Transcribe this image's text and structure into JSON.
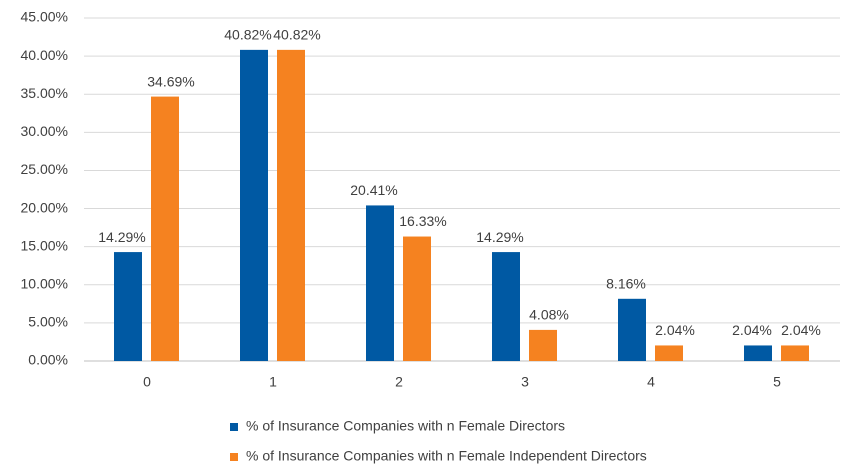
{
  "chart_data": {
    "type": "bar",
    "categories": [
      "0",
      "1",
      "2",
      "3",
      "4",
      "5"
    ],
    "series": [
      {
        "name": "% of Insurance Companies with n Female Directors",
        "color": "#0059a3",
        "values": [
          14.29,
          40.82,
          20.41,
          14.29,
          8.16,
          2.04
        ],
        "value_labels": [
          "14.29%",
          "40.82%",
          "20.41%",
          "14.29%",
          "8.16%",
          "2.04%"
        ]
      },
      {
        "name": "% of Insurance Companies with n Female Independent Directors",
        "color": "#f58220",
        "values": [
          34.69,
          40.82,
          16.33,
          4.08,
          2.04,
          2.04
        ],
        "value_labels": [
          "34.69%",
          "40.82%",
          "16.33%",
          "4.08%",
          "2.04%",
          "2.04%"
        ]
      }
    ],
    "ylim": [
      0,
      45
    ],
    "yticks": [
      {
        "value": 0,
        "label": "0.00%"
      },
      {
        "value": 5,
        "label": "5.00%"
      },
      {
        "value": 10,
        "label": "10.00%"
      },
      {
        "value": 15,
        "label": "15.00%"
      },
      {
        "value": 20,
        "label": "20.00%"
      },
      {
        "value": 25,
        "label": "25.00%"
      },
      {
        "value": 30,
        "label": "30.00%"
      },
      {
        "value": 35,
        "label": "35.00%"
      },
      {
        "value": 40,
        "label": "40.00%"
      },
      {
        "value": 45,
        "label": "45.00%"
      }
    ],
    "grid": true,
    "legend": "bottom"
  }
}
